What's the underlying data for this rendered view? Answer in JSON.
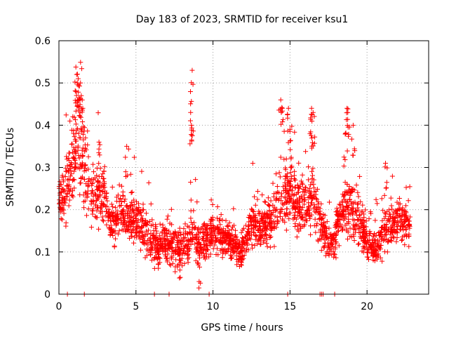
{
  "chart_data": {
    "type": "scatter",
    "title": "Day 183 of 2023, SRMTID for receiver ksu1",
    "xlabel": "GPS time / hours",
    "ylabel": "SRMTID / TECUs",
    "xlim": [
      0,
      24
    ],
    "ylim": [
      0,
      0.6
    ],
    "xticks": [
      0,
      5,
      10,
      15,
      20
    ],
    "yticks": [
      0,
      0.1,
      0.2,
      0.3,
      0.4,
      0.5,
      0.6
    ],
    "xtick_labels": [
      "0",
      "5",
      "10",
      "15",
      "20"
    ],
    "ytick_labels": [
      "0",
      "0.1",
      "0.2",
      "0.3",
      "0.4",
      "0.5",
      "0.6"
    ],
    "grid": true,
    "marker": "+",
    "color": "#ff0000",
    "profile": [
      {
        "x": 0.0,
        "y": 0.22,
        "spread": 0.05
      },
      {
        "x": 0.5,
        "y": 0.25,
        "spread": 0.07
      },
      {
        "x": 0.8,
        "y": 0.28,
        "spread": 0.09
      },
      {
        "x": 1.2,
        "y": 0.38,
        "spread": 0.12
      },
      {
        "x": 1.6,
        "y": 0.3,
        "spread": 0.1
      },
      {
        "x": 2.2,
        "y": 0.22,
        "spread": 0.08
      },
      {
        "x": 2.8,
        "y": 0.25,
        "spread": 0.09
      },
      {
        "x": 3.3,
        "y": 0.17,
        "spread": 0.06
      },
      {
        "x": 4.2,
        "y": 0.19,
        "spread": 0.06
      },
      {
        "x": 5.2,
        "y": 0.17,
        "spread": 0.06
      },
      {
        "x": 6.0,
        "y": 0.12,
        "spread": 0.05
      },
      {
        "x": 7.0,
        "y": 0.12,
        "spread": 0.05
      },
      {
        "x": 8.0,
        "y": 0.1,
        "spread": 0.05
      },
      {
        "x": 8.6,
        "y": 0.15,
        "spread": 0.07
      },
      {
        "x": 9.2,
        "y": 0.12,
        "spread": 0.05
      },
      {
        "x": 10.0,
        "y": 0.15,
        "spread": 0.05
      },
      {
        "x": 11.0,
        "y": 0.13,
        "spread": 0.04
      },
      {
        "x": 11.8,
        "y": 0.1,
        "spread": 0.04
      },
      {
        "x": 12.5,
        "y": 0.16,
        "spread": 0.05
      },
      {
        "x": 13.5,
        "y": 0.16,
        "spread": 0.05
      },
      {
        "x": 14.3,
        "y": 0.22,
        "spread": 0.08
      },
      {
        "x": 15.0,
        "y": 0.24,
        "spread": 0.09
      },
      {
        "x": 15.8,
        "y": 0.2,
        "spread": 0.07
      },
      {
        "x": 16.5,
        "y": 0.22,
        "spread": 0.08
      },
      {
        "x": 17.2,
        "y": 0.14,
        "spread": 0.05
      },
      {
        "x": 17.8,
        "y": 0.12,
        "spread": 0.04
      },
      {
        "x": 18.5,
        "y": 0.2,
        "spread": 0.07
      },
      {
        "x": 19.2,
        "y": 0.2,
        "spread": 0.08
      },
      {
        "x": 19.8,
        "y": 0.14,
        "spread": 0.05
      },
      {
        "x": 20.5,
        "y": 0.11,
        "spread": 0.04
      },
      {
        "x": 21.3,
        "y": 0.16,
        "spread": 0.06
      },
      {
        "x": 22.0,
        "y": 0.17,
        "spread": 0.05
      },
      {
        "x": 22.8,
        "y": 0.17,
        "spread": 0.05
      }
    ],
    "peaks": [
      {
        "x": 1.15,
        "y": 0.52
      },
      {
        "x": 1.25,
        "y": 0.51
      },
      {
        "x": 1.4,
        "y": 0.5
      },
      {
        "x": 1.1,
        "y": 0.48
      },
      {
        "x": 1.45,
        "y": 0.47
      },
      {
        "x": 0.9,
        "y": 0.42
      },
      {
        "x": 1.55,
        "y": 0.44
      },
      {
        "x": 2.6,
        "y": 0.36
      },
      {
        "x": 4.4,
        "y": 0.35
      },
      {
        "x": 8.65,
        "y": 0.53
      },
      {
        "x": 8.55,
        "y": 0.43
      },
      {
        "x": 8.6,
        "y": 0.4
      },
      {
        "x": 14.4,
        "y": 0.46
      },
      {
        "x": 14.5,
        "y": 0.44
      },
      {
        "x": 14.9,
        "y": 0.44
      },
      {
        "x": 15.0,
        "y": 0.39
      },
      {
        "x": 16.4,
        "y": 0.44
      },
      {
        "x": 16.5,
        "y": 0.43
      },
      {
        "x": 16.3,
        "y": 0.38
      },
      {
        "x": 18.7,
        "y": 0.44
      },
      {
        "x": 18.75,
        "y": 0.43
      },
      {
        "x": 19.1,
        "y": 0.4
      },
      {
        "x": 18.6,
        "y": 0.38
      },
      {
        "x": 21.2,
        "y": 0.31
      },
      {
        "x": 9.1,
        "y": 0.03
      }
    ],
    "zero_markers": [
      0.55,
      1.65,
      6.2,
      7.15,
      9.75,
      14.85,
      16.95,
      17.05,
      17.15,
      17.9
    ]
  }
}
